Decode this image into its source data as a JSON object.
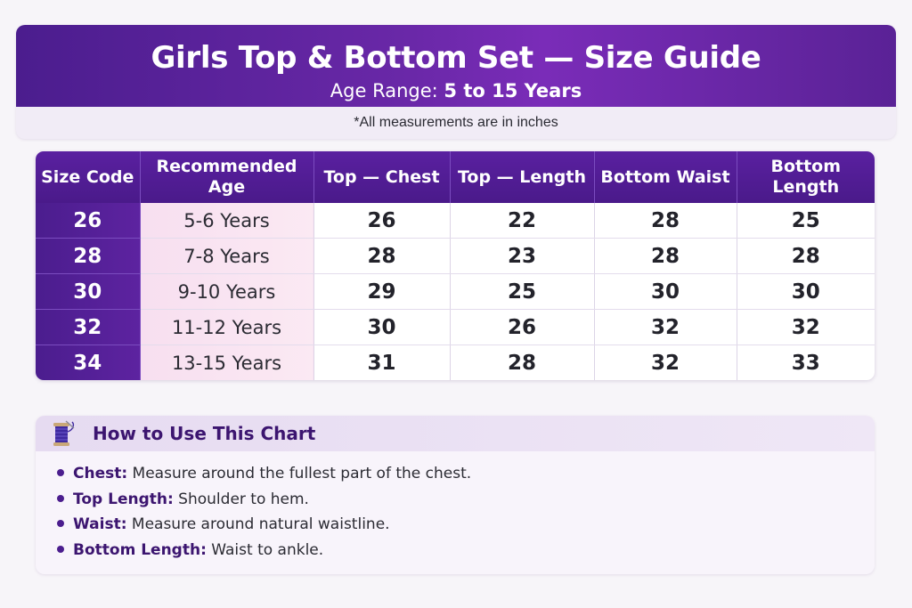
{
  "header": {
    "title": "Girls Top & Bottom Set — Size Guide",
    "subtitle_prefix": "Age Range:",
    "subtitle_value": "5 to 15 Years",
    "note": "*All measurements are in inches"
  },
  "table": {
    "columns": [
      "Size Code",
      "Recommended Age",
      "Top — Chest",
      "Top — Length",
      "Bottom Waist",
      "Bottom Length"
    ],
    "rows": [
      [
        "26",
        "5-6 Years",
        "26",
        "22",
        "28",
        "25"
      ],
      [
        "28",
        "7-8 Years",
        "28",
        "23",
        "28",
        "28"
      ],
      [
        "30",
        "9-10 Years",
        "29",
        "25",
        "30",
        "30"
      ],
      [
        "32",
        "11-12 Years",
        "30",
        "26",
        "32",
        "32"
      ],
      [
        "34",
        "13-15 Years",
        "31",
        "28",
        "32",
        "33"
      ]
    ]
  },
  "howto": {
    "title": "How to Use This Chart",
    "icon": "thread-spool-icon",
    "tips": [
      {
        "term": "Chest:",
        "text": " Measure around the fullest part of the chest."
      },
      {
        "term": "Top Length:",
        "text": " Shoulder to hem."
      },
      {
        "term": "Waist:",
        "text": " Measure around natural waistline."
      },
      {
        "term": "Bottom Length:",
        "text": " Waist to ankle."
      }
    ]
  },
  "colors": {
    "primary": "#4b1d8e",
    "accent": "#7a2cb8",
    "age_cell": "#f7dff0"
  }
}
